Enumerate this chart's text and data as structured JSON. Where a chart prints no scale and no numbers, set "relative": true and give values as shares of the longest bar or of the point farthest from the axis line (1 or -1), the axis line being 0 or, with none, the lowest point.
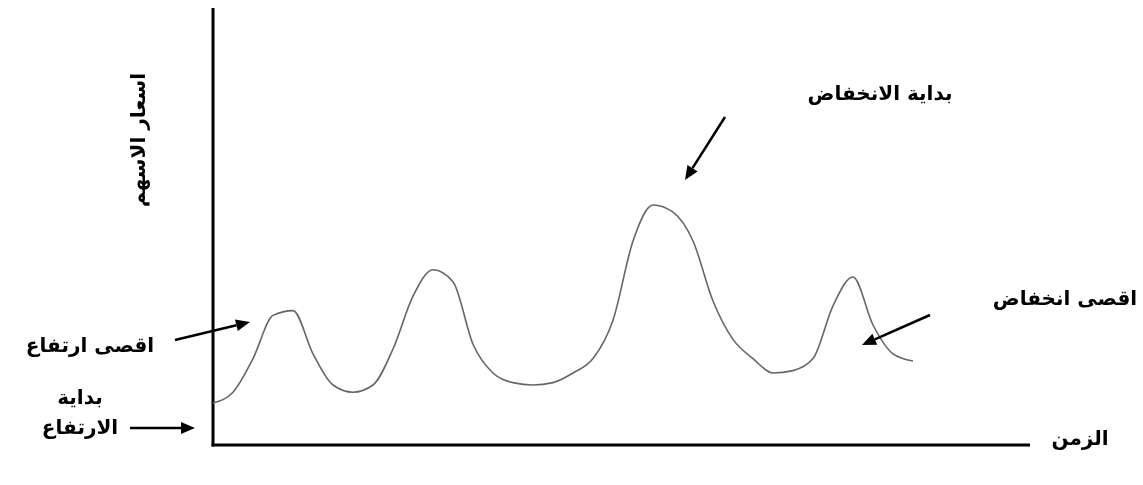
{
  "chart_data": {
    "type": "line",
    "relative": true,
    "ylabel": "اسعار الاسهم",
    "categories": [
      null,
      null,
      null,
      null,
      null,
      null,
      null,
      null,
      null,
      null,
      null,
      null,
      null,
      null,
      null,
      null,
      null,
      null,
      null,
      null,
      null,
      null,
      null,
      null,
      null,
      null,
      null,
      null,
      null,
      null,
      null,
      null,
      null,
      null,
      null,
      null
    ],
    "series": [
      {
        "color": "#666666",
        "values": [
          0.175,
          0.22,
          0.36,
          0.54,
          0.56,
          0.38,
          0.25,
          0.22,
          0.25,
          0.4,
          0.62,
          0.73,
          0.68,
          0.42,
          0.3,
          0.26,
          0.25,
          0.26,
          0.3,
          0.36,
          0.52,
          0.85,
          1.0,
          0.97,
          0.85,
          0.6,
          0.44,
          0.36,
          0.3,
          0.31,
          0.36,
          0.58,
          0.7,
          0.5,
          0.38,
          0.35
        ]
      }
    ],
    "annotations": [
      "بداية الانخفاض",
      "اقصى انخفاض",
      "اقصى ارتفاع",
      "بداية\nالارتفاع",
      "الزمن"
    ],
    "marker": "none",
    "line_style": "solid"
  }
}
